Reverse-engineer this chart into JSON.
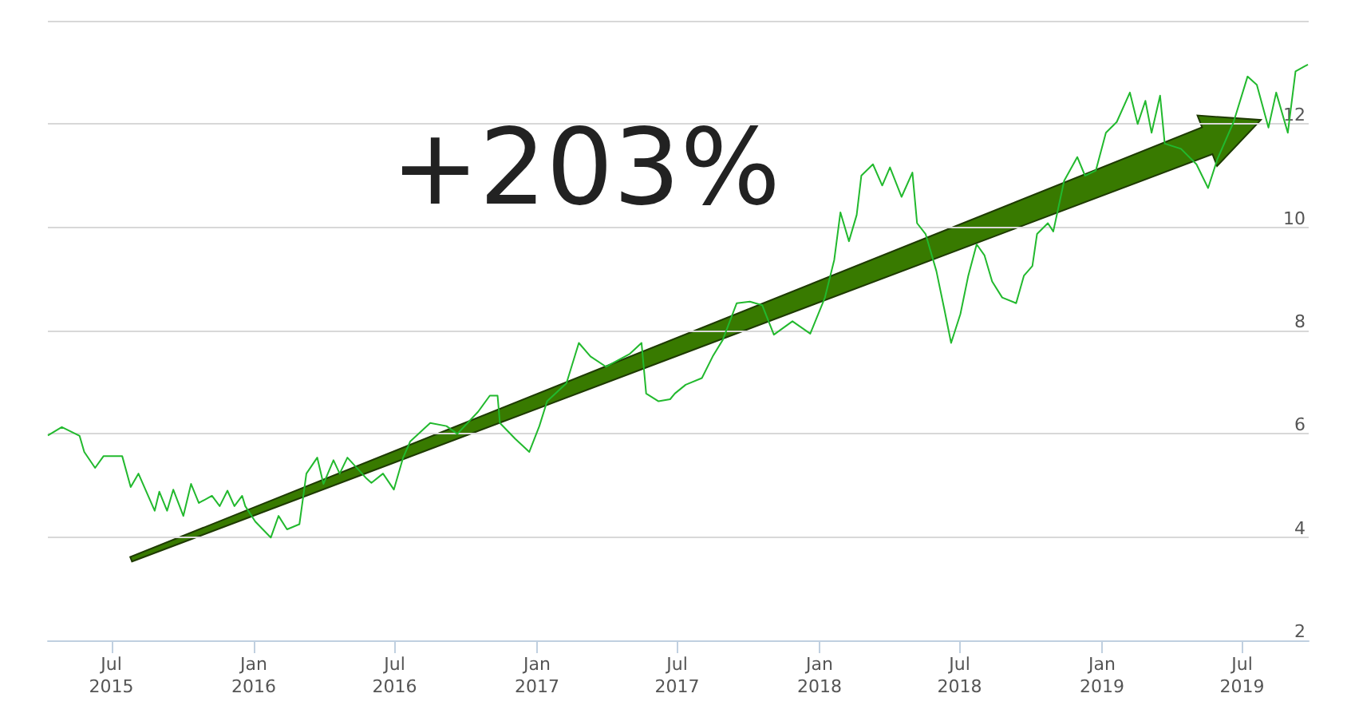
{
  "chart_data": {
    "type": "line",
    "annotations": [
      "+203%"
    ],
    "x": [
      "2015-04-10",
      "2015-04-28",
      "2015-05-21",
      "2015-05-27",
      "2015-06-10",
      "2015-06-21",
      "2015-07-15",
      "2015-07-26",
      "2015-08-05",
      "2015-08-26",
      "2015-09-01",
      "2015-09-11",
      "2015-09-19",
      "2015-10-02",
      "2015-10-12",
      "2015-10-22",
      "2015-11-08",
      "2015-11-18",
      "2015-11-28",
      "2015-12-07",
      "2015-12-17",
      "2015-12-21",
      "2016-01-03",
      "2016-01-23",
      "2016-02-02",
      "2016-02-13",
      "2016-02-29",
      "2016-03-09",
      "2016-03-23",
      "2016-03-31",
      "2016-04-13",
      "2016-04-21",
      "2016-05-01",
      "2016-05-26",
      "2016-06-01",
      "2016-06-16",
      "2016-06-30",
      "2016-07-12",
      "2016-07-21",
      "2016-08-16",
      "2016-09-06",
      "2016-09-20",
      "2016-10-17",
      "2016-11-01",
      "2016-11-11",
      "2016-11-14",
      "2016-12-04",
      "2016-12-22",
      "2017-01-04",
      "2017-01-14",
      "2017-02-08",
      "2017-02-24",
      "2017-03-11",
      "2017-03-31",
      "2017-05-01",
      "2017-05-16",
      "2017-05-22",
      "2017-06-07",
      "2017-06-22",
      "2017-06-28",
      "2017-07-12",
      "2017-08-02",
      "2017-08-16",
      "2017-08-29",
      "2017-09-16",
      "2017-10-03",
      "2017-10-19",
      "2017-11-03",
      "2017-11-27",
      "2017-12-20",
      "2018-01-08",
      "2018-01-20",
      "2018-01-28",
      "2018-02-08",
      "2018-02-18",
      "2018-02-24",
      "2018-03-11",
      "2018-03-23",
      "2018-04-02",
      "2018-04-17",
      "2018-05-01",
      "2018-05-07",
      "2018-05-18",
      "2018-06-01",
      "2018-06-11",
      "2018-06-20",
      "2018-07-02",
      "2018-07-12",
      "2018-07-23",
      "2018-08-02",
      "2018-08-12",
      "2018-08-25",
      "2018-09-12",
      "2018-09-22",
      "2018-10-03",
      "2018-10-09",
      "2018-10-23",
      "2018-10-30",
      "2018-11-13",
      "2018-11-30",
      "2018-12-10",
      "2018-12-24",
      "2019-01-06",
      "2019-01-20",
      "2019-02-06",
      "2019-02-16",
      "2019-02-26",
      "2019-03-06",
      "2019-03-17",
      "2019-03-23",
      "2019-04-13",
      "2019-05-03",
      "2019-05-18",
      "2019-05-30",
      "2019-06-20",
      "2019-07-08",
      "2019-07-20",
      "2019-08-04",
      "2019-08-14",
      "2019-08-29",
      "2019-09-08",
      "2019-09-20",
      "2019-09-24"
    ],
    "series": [
      {
        "color": "#22b92e",
        "values": [
          5.97,
          6.13,
          5.96,
          5.65,
          5.34,
          5.57,
          5.57,
          4.97,
          5.23,
          4.51,
          4.88,
          4.51,
          4.92,
          4.41,
          5.03,
          4.66,
          4.8,
          4.6,
          4.9,
          4.6,
          4.8,
          4.6,
          4.3,
          3.99,
          4.41,
          4.15,
          4.25,
          5.23,
          5.54,
          5.03,
          5.49,
          5.23,
          5.54,
          5.13,
          5.05,
          5.23,
          4.92,
          5.54,
          5.85,
          6.21,
          6.15,
          6.0,
          6.43,
          6.74,
          6.74,
          6.21,
          5.9,
          5.65,
          6.15,
          6.63,
          6.98,
          7.76,
          7.5,
          7.3,
          7.55,
          7.76,
          6.78,
          6.63,
          6.67,
          6.78,
          6.95,
          7.08,
          7.5,
          7.82,
          8.53,
          8.56,
          8.49,
          7.92,
          8.18,
          7.94,
          8.64,
          9.37,
          10.29,
          9.73,
          10.24,
          11.0,
          11.22,
          10.81,
          11.16,
          10.59,
          11.06,
          10.08,
          9.87,
          9.15,
          8.43,
          7.76,
          8.32,
          9.05,
          9.67,
          9.46,
          8.95,
          8.64,
          8.53,
          9.06,
          9.25,
          9.87,
          10.08,
          9.92,
          10.9,
          11.36,
          11.0,
          11.1,
          11.83,
          12.04,
          12.61,
          12.0,
          12.45,
          11.83,
          12.55,
          11.62,
          11.52,
          11.22,
          10.76,
          11.32,
          12.04,
          12.92,
          12.76,
          11.93,
          12.61,
          11.83,
          13.02,
          13.12,
          13.15
        ]
      }
    ],
    "xlim": [
      "2015-04-10",
      "2019-09-25"
    ],
    "xticks": [
      {
        "value": "2015-07-01",
        "label": "Jul 2015"
      },
      {
        "value": "2016-01-01",
        "label": "Jan 2016"
      },
      {
        "value": "2016-07-01",
        "label": "Jul 2016"
      },
      {
        "value": "2017-01-01",
        "label": "Jan 2017"
      },
      {
        "value": "2017-07-01",
        "label": "Jul 2017"
      },
      {
        "value": "2018-01-01",
        "label": "Jan 2018"
      },
      {
        "value": "2018-07-01",
        "label": "Jul 2018"
      },
      {
        "value": "2019-01-01",
        "label": "Jan 2019"
      },
      {
        "value": "2019-07-01",
        "label": "Jul 2019"
      }
    ],
    "ylim": [
      2,
      14
    ],
    "yticks": [
      2,
      4,
      6,
      8,
      10,
      12,
      {
        "value": 14,
        "label": null
      }
    ],
    "grid": "y",
    "marker": "none",
    "line_style": "solid"
  }
}
